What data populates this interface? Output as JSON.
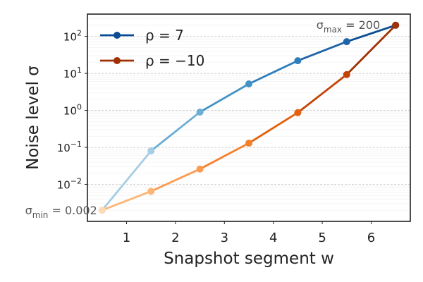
{
  "chart_data": {
    "type": "line",
    "xlabel": "Snapshot segment w",
    "ylabel": "Noise level σ",
    "yscale": "log",
    "xlim": [
      0.2,
      6.8
    ],
    "ylim": [
      0.001,
      400
    ],
    "x_ticks": [
      1,
      2,
      3,
      4,
      5,
      6
    ],
    "y_ticks": [
      {
        "value": 0.01,
        "base": "10",
        "exp": "−2"
      },
      {
        "value": 0.1,
        "base": "10",
        "exp": "−1"
      },
      {
        "value": 1,
        "base": "10",
        "exp": "0"
      },
      {
        "value": 10,
        "base": "10",
        "exp": "1"
      },
      {
        "value": 100,
        "base": "10",
        "exp": "2"
      }
    ],
    "grid": true,
    "legend_position": "top-left",
    "series": [
      {
        "name": "ρ = 7",
        "legend_color": "#0b4d94",
        "x": [
          0.5,
          1.5,
          2.5,
          3.5,
          4.5,
          5.5,
          6.5
        ],
        "y": [
          0.002,
          0.08,
          0.9,
          5.2,
          22,
          72,
          200
        ],
        "segment_colors": [
          "#d3e3f3",
          "#a6cde4",
          "#6baed6",
          "#4292c6",
          "#2e7ebc",
          "#1f63a8",
          "#0b4d94"
        ]
      },
      {
        "name": "ρ = −10",
        "legend_color": "#a03005",
        "x": [
          0.5,
          1.5,
          2.5,
          3.5,
          4.5,
          5.5,
          6.5
        ],
        "y": [
          0.002,
          0.0065,
          0.026,
          0.13,
          0.87,
          9.3,
          200
        ],
        "segment_colors": [
          "#fdd9b5",
          "#fdb677",
          "#fd9a50",
          "#f57f2b",
          "#e3600f",
          "#c44305",
          "#a03005"
        ]
      }
    ],
    "annotations": [
      {
        "text": "σ",
        "sub": "min",
        "rest": " = 0.002",
        "anchor": "min"
      },
      {
        "text": "σ",
        "sub": "max",
        "rest": " = 200",
        "anchor": "max"
      }
    ]
  }
}
